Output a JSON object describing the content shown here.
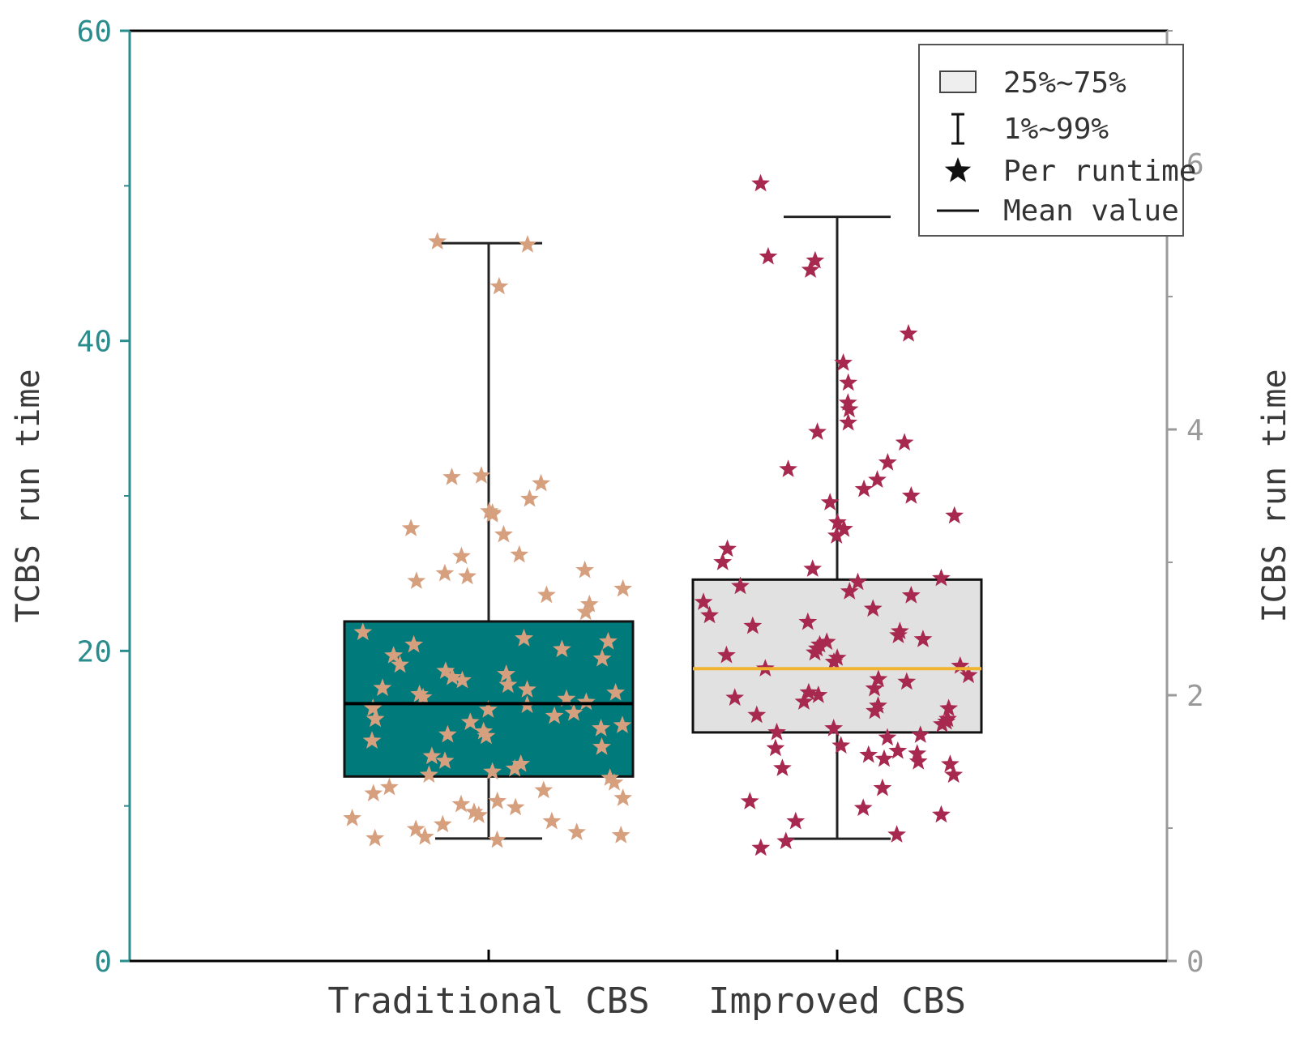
{
  "chart_data": {
    "type": "box",
    "left_axis": {
      "label": "TCBS run time",
      "ylim": [
        0,
        60
      ],
      "ticks": [
        0,
        20,
        40,
        60
      ],
      "color": "#2a8c8c"
    },
    "right_axis": {
      "label": "ICBS run time",
      "ylim": [
        0,
        7
      ],
      "ticks": [
        0,
        2,
        4,
        6
      ],
      "color": "#9a9a9a"
    },
    "categories": [
      "Traditional CBS",
      "Improved CBS"
    ],
    "legend": {
      "placement": "top-right",
      "entries": [
        "25%~75%",
        "1%~99%",
        "Per runtime",
        "Mean value"
      ]
    },
    "series": [
      {
        "category": "Traditional CBS",
        "axis": "left",
        "box_fill": "#007a7a",
        "point_color": "#d6a07f",
        "mean_color": "#000000",
        "q1": 11.9,
        "q3": 21.9,
        "mean": 16.6,
        "whisker_low": 7.9,
        "whisker_high": 46.3,
        "points": [
          46.4,
          46.2,
          43.5,
          31.3,
          31.2,
          30.8,
          29.8,
          29.0,
          28.9,
          28.8,
          27.9,
          27.5,
          26.2,
          26.1,
          25.2,
          25.0,
          24.8,
          24.5,
          24.0,
          23.6,
          23.0,
          22.5,
          21.2,
          20.8,
          20.6,
          20.4,
          20.1,
          19.7,
          19.5,
          19.1,
          18.7,
          18.5,
          18.3,
          18.1,
          17.8,
          17.6,
          17.5,
          17.3,
          17.2,
          17.0,
          16.9,
          16.7,
          16.5,
          16.3,
          16.2,
          16.0,
          15.8,
          15.6,
          15.4,
          15.2,
          15.0,
          14.8,
          14.6,
          14.5,
          14.2,
          13.8,
          13.2,
          12.9,
          12.7,
          12.4,
          12.2,
          12.0,
          11.8,
          11.5,
          11.2,
          11.0,
          10.8,
          10.5,
          10.3,
          10.1,
          9.9,
          9.6,
          9.4,
          9.2,
          9.0,
          8.8,
          8.5,
          8.3,
          8.1,
          8.0,
          7.9,
          7.8
        ]
      },
      {
        "category": "Improved CBS",
        "axis": "right",
        "box_fill": "#e1e1e1",
        "point_color": "#a8294f",
        "mean_color": "#f0b430",
        "q1": 1.72,
        "q3": 2.87,
        "mean": 2.2,
        "whisker_low": 0.92,
        "whisker_high": 5.6,
        "points": [
          5.85,
          5.3,
          5.27,
          5.2,
          4.72,
          4.5,
          4.35,
          4.2,
          4.15,
          4.05,
          3.98,
          3.9,
          3.75,
          3.7,
          3.62,
          3.55,
          3.5,
          3.45,
          3.35,
          3.3,
          3.25,
          3.2,
          3.1,
          3.0,
          2.95,
          2.88,
          2.85,
          2.82,
          2.78,
          2.75,
          2.7,
          2.65,
          2.6,
          2.55,
          2.52,
          2.48,
          2.45,
          2.42,
          2.4,
          2.38,
          2.35,
          2.32,
          2.3,
          2.28,
          2.25,
          2.22,
          2.2,
          2.15,
          2.12,
          2.1,
          2.05,
          2.02,
          2.0,
          1.98,
          1.95,
          1.92,
          1.9,
          1.88,
          1.85,
          1.82,
          1.8,
          1.78,
          1.75,
          1.72,
          1.7,
          1.68,
          1.62,
          1.6,
          1.58,
          1.56,
          1.55,
          1.52,
          1.5,
          1.48,
          1.45,
          1.4,
          1.3,
          1.2,
          1.15,
          1.1,
          1.05,
          0.95,
          0.9,
          0.85
        ]
      }
    ]
  }
}
